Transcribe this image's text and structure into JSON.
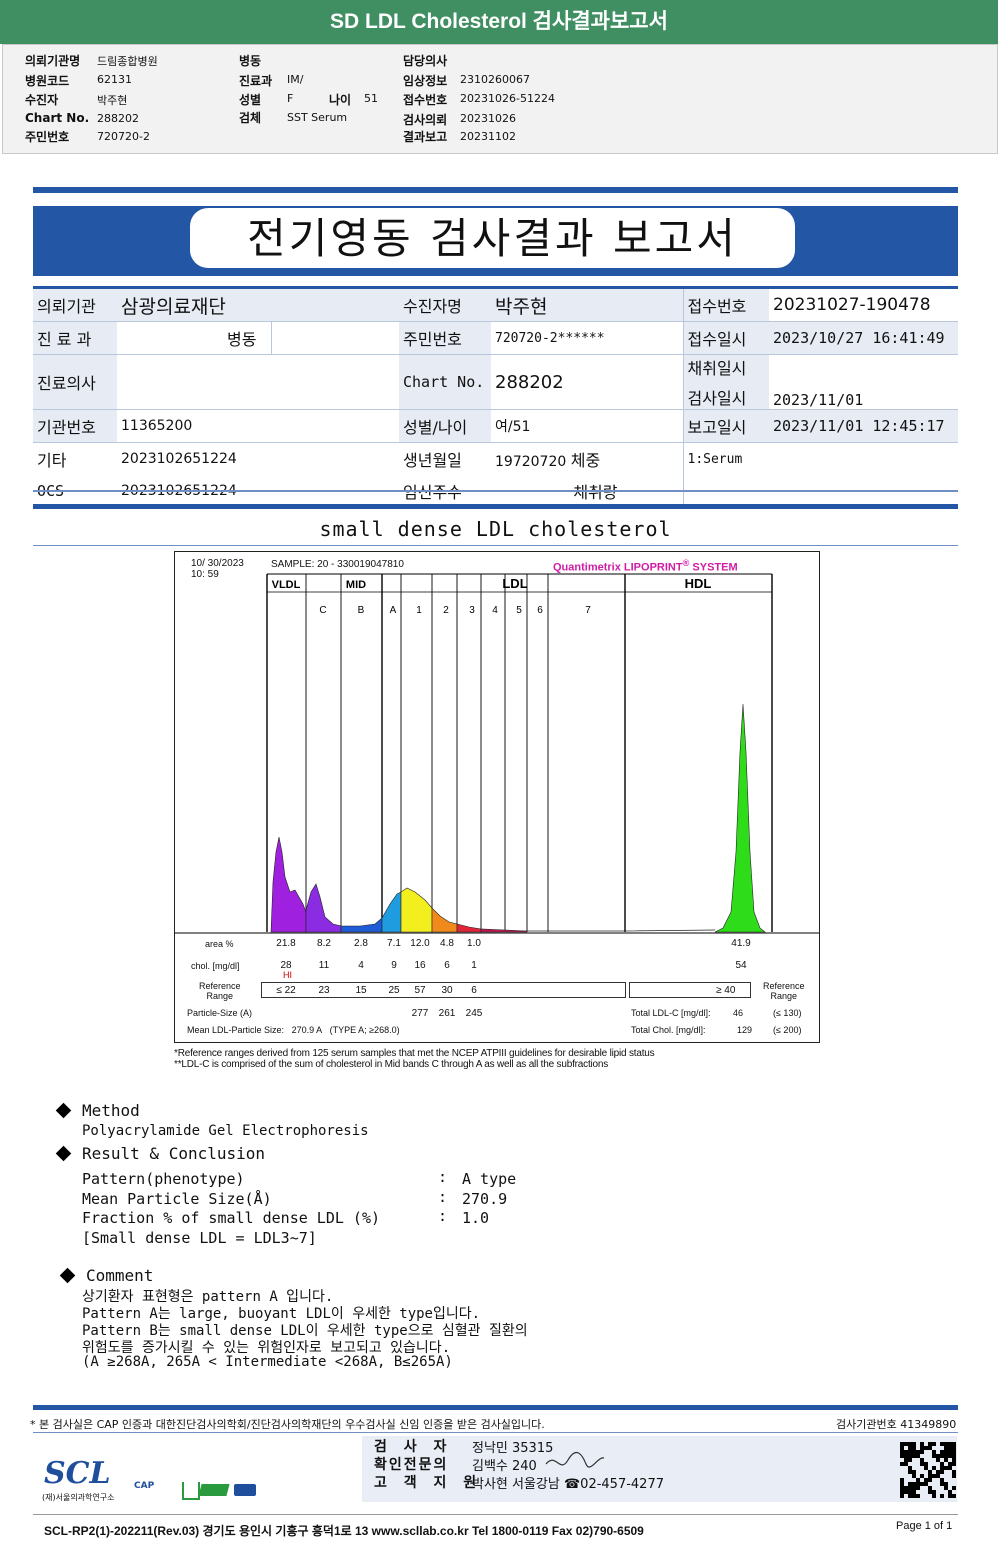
{
  "banner": {
    "title": "SD LDL Cholesterol 검사결과보고서"
  },
  "header": {
    "col1": [
      {
        "label": "의뢰기관명",
        "value": "드림종합병원"
      },
      {
        "label": "병원코드",
        "value": "62131"
      },
      {
        "label": "수진자",
        "value": "박주현"
      },
      {
        "label": "Chart No.",
        "value": "288202"
      },
      {
        "label": "주민번호",
        "value": "720720-2"
      }
    ],
    "col2": [
      {
        "label": "병동",
        "value": ""
      },
      {
        "label": "진료과",
        "value": "IM/"
      },
      {
        "label": "성별",
        "value": "F"
      },
      {
        "label": "검체",
        "value": "SST Serum"
      }
    ],
    "age_label": "나이",
    "age_value": "51",
    "col3": [
      {
        "label": "담당의사",
        "value": ""
      },
      {
        "label": "임상정보",
        "value": "2310260067"
      },
      {
        "label": "접수번호",
        "value": "20231026-51224"
      },
      {
        "label": "검사의뢰",
        "value": "20231026"
      },
      {
        "label": "결과보고",
        "value": "20231102"
      }
    ]
  },
  "report_title": "전기영동 검사결과 보고서",
  "info": {
    "inst_label": "의뢰기관",
    "inst": "삼광의료재단",
    "patient_label": "수진자명",
    "patient": "박주현",
    "accno_label": "접수번호",
    "accno": "20231027-190478",
    "dept_label": "진 료 과",
    "dept": "병동",
    "ssn_label": "주민번호",
    "ssn": "720720-2******",
    "acctime_label": "접수일시",
    "acctime": "2023/10/27 16:41:49",
    "doctor_label": "진료의사",
    "doctor": "",
    "chart_label": "Chart No.",
    "chart": "288202",
    "coltime_label": "채취일시",
    "coltime": "",
    "testtime_label": "검사일시",
    "testtime": "2023/11/01",
    "instno_label": "기관번호",
    "instno": "11365200",
    "sexage_label": "성별/나이",
    "sexage": "여/51",
    "reptime_label": "보고일시",
    "reptime": "2023/11/01 12:45:17",
    "etc_label": "기타",
    "etc": "2023102651224",
    "dob_label": "생년월일",
    "dob": "19720720",
    "weight_label": "체중",
    "specimen": "1:Serum",
    "ocs_label": "OCS",
    "ocs": "2023102651224",
    "preg_label": "임신주수",
    "volume_label": "채취량"
  },
  "section_title": "small dense LDL cholesterol",
  "chart_data": {
    "type": "area",
    "datetime": "10/ 30/2023",
    "time": "10:  59",
    "sample": "SAMPLE:   20 - 330019047810",
    "brand": "Quantimetrix LIPOPRINT",
    "brand_sup": "®",
    "brand2": "SYSTEM",
    "groups": [
      "VLDL",
      "MID",
      "LDL",
      "HDL"
    ],
    "bands": [
      "C",
      "B",
      "A",
      "1",
      "2",
      "3",
      "4",
      "5",
      "6",
      "7"
    ],
    "series": [
      {
        "values_area": [
          21.8,
          8.2,
          2.8,
          7.1,
          12.0,
          4.8,
          1.0,
          41.9
        ]
      }
    ],
    "rows": {
      "area_label": "area %",
      "area": [
        "21.8",
        "8.2",
        "2.8",
        "7.1",
        "12.0",
        "4.8",
        "1.0",
        "41.9"
      ],
      "chol_label": "chol. [mg/dl]",
      "chol": [
        "28",
        "11",
        "4",
        "9",
        "16",
        "6",
        "1",
        "54"
      ],
      "hi": "HI",
      "ref_label1": "Reference",
      "ref_label2": "Range",
      "ref": [
        "≤ 22",
        "23",
        "15",
        "25",
        "57",
        "30",
        "6"
      ],
      "ref_hdl": "≥  40",
      "particle_label": "Particle-Size (A)",
      "particle": [
        "277",
        "261",
        "245"
      ],
      "mean_label": "Mean LDL-Particle Size:",
      "mean": "270.9  A",
      "mean_type": "(TYPE A; ≥268.0)",
      "total_ldl_label": "Total LDL-C [mg/dl]:",
      "total_ldl": "46",
      "total_ldl_ref": "(≤ 130)",
      "total_chol_label": "Total Chol. [mg/dl]:",
      "total_chol": "129",
      "total_chol_ref": "(≤ 200)"
    },
    "colors": {
      "vldl": "#a020e0",
      "mid_c": "#8b2be2",
      "mid_b": "#1e5bd6",
      "mid_a": "#1f9be0",
      "ldl1": "#f3ef1f",
      "ldl2": "#f08a1a",
      "ldl3": "#e0243a",
      "ldl4": "#c21850",
      "hdl": "#2fdc1a"
    }
  },
  "footnotes": [
    "*Reference ranges derived from 125 serum samples that met the NCEP ATPIII guidelines for desirable lipid status",
    "**LDL-C is comprised of the sum of cholesterol in Mid bands C through A as well as all the subfractions"
  ],
  "method": {
    "heading": "Method",
    "text": "Polyacrylamide Gel Electrophoresis"
  },
  "result": {
    "heading": "Result & Conclusion",
    "rows": [
      {
        "label": "Pattern(phenotype)",
        "value": "A type"
      },
      {
        "label": "Mean Particle Size(Å)",
        "value": "270.9"
      },
      {
        "label": "Fraction % of small dense LDL (%)",
        "value": "1.0"
      }
    ],
    "note": "[Small dense LDL = LDL3~7]"
  },
  "comment": {
    "heading": "Comment",
    "lines": [
      "상기환자 표현형은 pattern A 입니다.",
      "Pattern A는 large, buoyant LDL이 우세한 type입니다.",
      "Pattern B는 small dense LDL이 우세한 type으로 심혈관 질환의",
      "위험도를 증가시킬 수 있는 위험인자로 보고되고 있습니다.",
      "(A ≥268A, 265A < Intermediate <268A, B≤265A)"
    ]
  },
  "footer": {
    "cert": "* 본 검사실은 CAP 인증과 대한진단검사의학회/진단검사의학재단의 우수검사실 신임 인증을 받은 검사실입니다.",
    "instno": "검사기관번호  41349890",
    "tester_label": "검 사 자",
    "tester": "정낙민 35315",
    "confirm_label": "확인전문의",
    "confirm": "김백수 240",
    "support_label": "고 객 지 원",
    "support": "박사현 서울강남 ☎02-457-4277",
    "logo": "SCL",
    "logo_sub": "(재)서울의과학연구소",
    "cap": "CAP",
    "address": "SCL-RP2(1)-202211(Rev.03)  경기도 용인시 기흥구 흥덕1로 13  www.scllab.co.kr  Tel 1800-0119   Fax 02)790-6509",
    "page": "Page 1 of 1"
  }
}
